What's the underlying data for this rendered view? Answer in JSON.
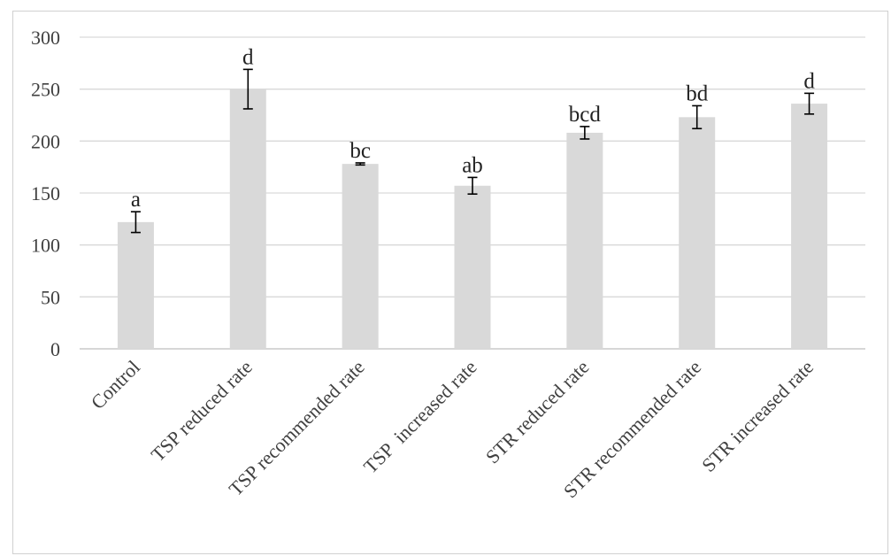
{
  "chart_data": {
    "type": "bar",
    "categories": [
      "Control",
      "TSP reduced rate",
      "TSP recommended rate",
      "TSP  increased rate",
      "STR reduced rate",
      "STR recommended rate",
      "STR increased rate"
    ],
    "values": [
      122,
      250,
      178,
      157,
      208,
      223,
      236
    ],
    "errors": [
      10,
      19,
      1,
      8,
      6,
      11,
      10
    ],
    "significance_labels": [
      "a",
      "d",
      "bc",
      "ab",
      "bcd",
      "bd",
      "d"
    ],
    "ylim": [
      0,
      300
    ],
    "yticks": [
      0,
      50,
      100,
      150,
      200,
      250,
      300
    ],
    "grid": true,
    "bar_color": "#d9d9d9",
    "gridline_color": "#d9d9d9",
    "errorbar_color": "#000000"
  }
}
